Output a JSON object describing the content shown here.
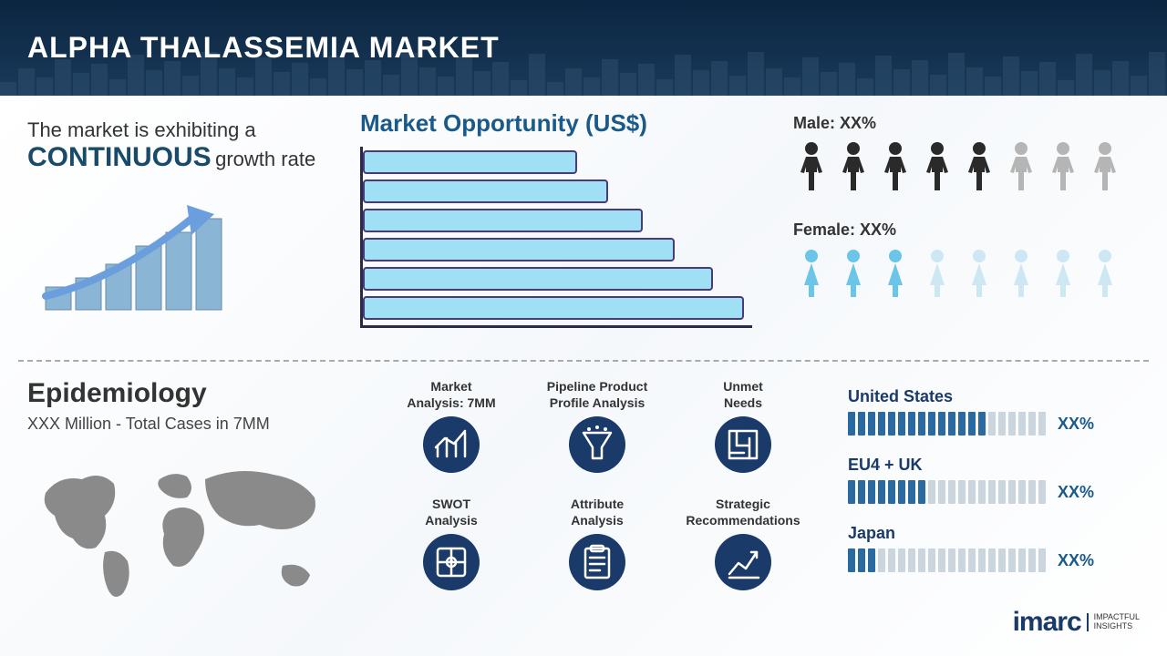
{
  "header": {
    "title": "ALPHA THALASSEMIA MARKET"
  },
  "growth": {
    "line1": "The market is exhibiting a",
    "emphasis": "CONTINUOUS",
    "line2_rest": " growth rate",
    "bar_color": "#8ab5d4",
    "arrow_color": "#6a9edc",
    "bars_rel_heights": [
      0.25,
      0.35,
      0.5,
      0.7,
      0.85,
      1.0
    ]
  },
  "opportunity": {
    "title": "Market Opportunity (US$)",
    "type": "horizontal-bar",
    "bar_fill": "#a0e0f5",
    "bar_border": "#4a3a7a",
    "axis_color": "#2a2a4a",
    "bars_pct_width": [
      55,
      63,
      72,
      80,
      90,
      98
    ]
  },
  "demographics": {
    "male": {
      "label": "Male: XX%",
      "total_icons": 8,
      "filled": 5,
      "fill_color": "#2a2a2a",
      "empty_color": "#b5b5b5"
    },
    "female": {
      "label": "Female: XX%",
      "total_icons": 8,
      "filled": 3,
      "fill_color": "#6ac5e8",
      "empty_color": "#cde8f2"
    }
  },
  "epidemiology": {
    "title": "Epidemiology",
    "subtitle": "XXX Million - Total Cases in 7MM",
    "map_color": "#8a8a8a"
  },
  "categories": [
    {
      "line1": "Market",
      "line2": "Analysis: 7MM",
      "icon": "chart"
    },
    {
      "line1": "Pipeline Product",
      "line2": "Profile Analysis",
      "icon": "funnel"
    },
    {
      "line1": "Unmet",
      "line2": "Needs",
      "icon": "maze"
    },
    {
      "line1": "SWOT",
      "line2": "Analysis",
      "icon": "swot"
    },
    {
      "line1": "Attribute",
      "line2": "Analysis",
      "icon": "clipboard"
    },
    {
      "line1": "Strategic",
      "line2": "Recommendations",
      "icon": "growth"
    }
  ],
  "category_style": {
    "circle_bg": "#1a3a6a",
    "icon_stroke": "#ffffff"
  },
  "regions": {
    "tally_total": 20,
    "fill_color": "#2a6aa0",
    "empty_color": "#cad5de",
    "items": [
      {
        "name": "United States",
        "filled": 14,
        "pct": "XX%"
      },
      {
        "name": "EU4 + UK",
        "filled": 8,
        "pct": "XX%"
      },
      {
        "name": "Japan",
        "filled": 3,
        "pct": "XX%"
      }
    ]
  },
  "logo": {
    "brand": "imarc",
    "tagline1": "IMPACTFUL",
    "tagline2": "INSIGHTS",
    "color": "#1a3a6a"
  }
}
